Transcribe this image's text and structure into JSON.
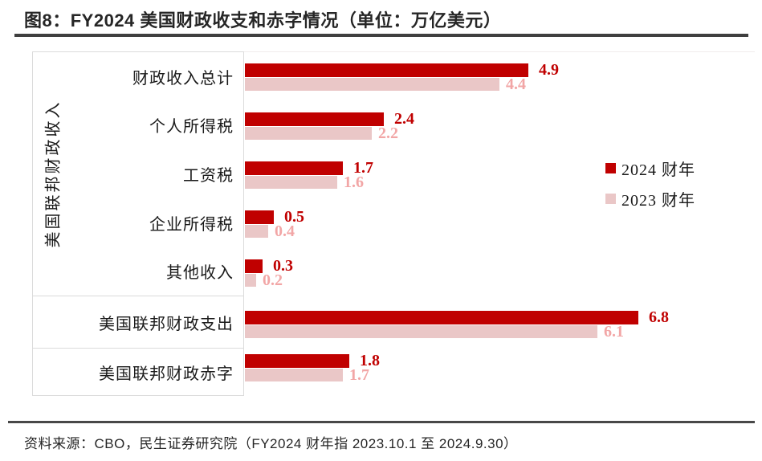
{
  "header": {
    "title": "图8：FY2024 美国财政收支和赤字情况（单位：万亿美元）"
  },
  "colors": {
    "fy2024_bar": "#C00000",
    "fy2023_bar": "#EAC7C7",
    "fy2024_value_text": "#C00000",
    "fy2023_value_text": "#F2A6A6",
    "title_rule": "#3F3F3F",
    "footer_rule": "#484848",
    "box_border": "#DBDBDB"
  },
  "chart_data": {
    "type": "bar",
    "orientation": "horizontal",
    "title": "图8：FY2024 美国财政收支和赤字情况",
    "unit": "万亿美元",
    "group_label": "美国联邦财政收入",
    "categories": [
      "财政收入总计",
      "个人所得税",
      "工资税",
      "企业所得税",
      "其他收入",
      "美国联邦财政支出",
      "美国联邦财政赤字"
    ],
    "series": [
      {
        "name": "2024 财年",
        "color": "#C00000",
        "values": [
          4.9,
          2.4,
          1.7,
          0.5,
          0.3,
          6.8,
          1.8
        ]
      },
      {
        "name": "2023 财年",
        "color": "#EAC7C7",
        "values": [
          4.4,
          2.2,
          1.6,
          0.4,
          0.2,
          6.1,
          1.7
        ]
      }
    ],
    "xlim": [
      0,
      8.8
    ],
    "grid": false,
    "value_labels": true,
    "legend_position": "right"
  },
  "footer": {
    "source": "资料来源：CBO，民生证券研究院（FY2024 财年指 2023.10.1 至 2024.9.30）"
  }
}
